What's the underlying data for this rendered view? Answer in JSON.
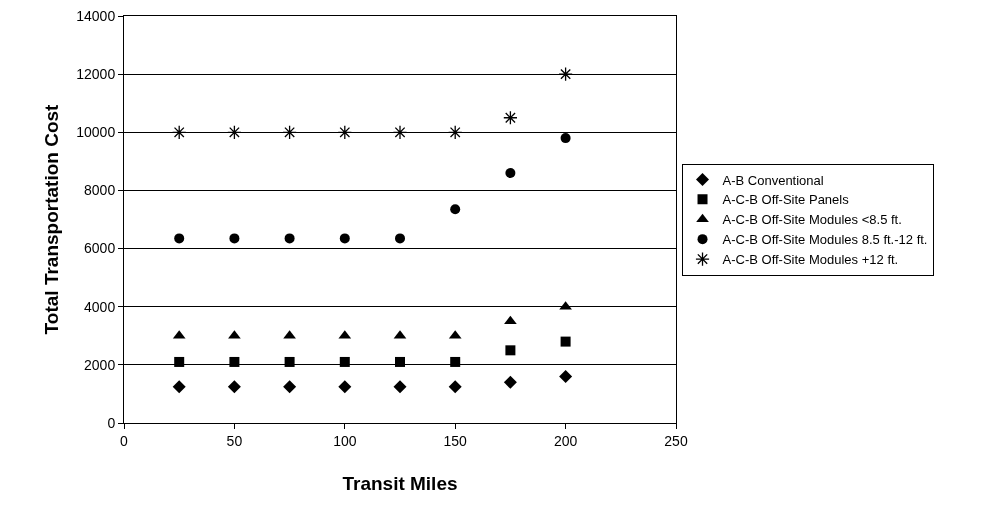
{
  "chart_data": {
    "type": "scatter",
    "xlabel": "Transit Miles",
    "ylabel": "Total Transportation Cost",
    "x": [
      25,
      50,
      75,
      100,
      125,
      150,
      175,
      200
    ],
    "series": [
      {
        "name": "A-B Conventional",
        "color": "#000000",
        "marker": "diamond",
        "values": [
          1250,
          1250,
          1250,
          1250,
          1250,
          1250,
          1400,
          1600
        ]
      },
      {
        "name": "A-C-B Off-Site Panels",
        "color": "#000000",
        "marker": "square",
        "values": [
          2100,
          2100,
          2100,
          2100,
          2100,
          2100,
          2500,
          2800
        ]
      },
      {
        "name": "A-C-B Off-Site Modules <8.5 ft.",
        "color": "#000000",
        "marker": "triangle",
        "values": [
          3000,
          3000,
          3000,
          3000,
          3000,
          3000,
          3500,
          4000
        ]
      },
      {
        "name": "A-C-B Off-Site Modules 8.5 ft.-12 ft.",
        "color": "#000000",
        "marker": "circle",
        "values": [
          6350,
          6350,
          6350,
          6350,
          6350,
          7350,
          8600,
          9800
        ]
      },
      {
        "name": "A-C-B Off-Site Modules +12 ft.",
        "color": "#000000",
        "marker": "cross",
        "values": [
          10000,
          10000,
          10000,
          10000,
          10000,
          10000,
          10500,
          12000
        ]
      }
    ],
    "xlim": [
      0,
      250
    ],
    "xticks": [
      0,
      50,
      100,
      150,
      200,
      250
    ],
    "ylim": [
      0,
      14000
    ],
    "yticks": [
      0,
      2000,
      4000,
      6000,
      8000,
      10000,
      12000,
      14000
    ],
    "grid": "y",
    "legend": "right"
  }
}
